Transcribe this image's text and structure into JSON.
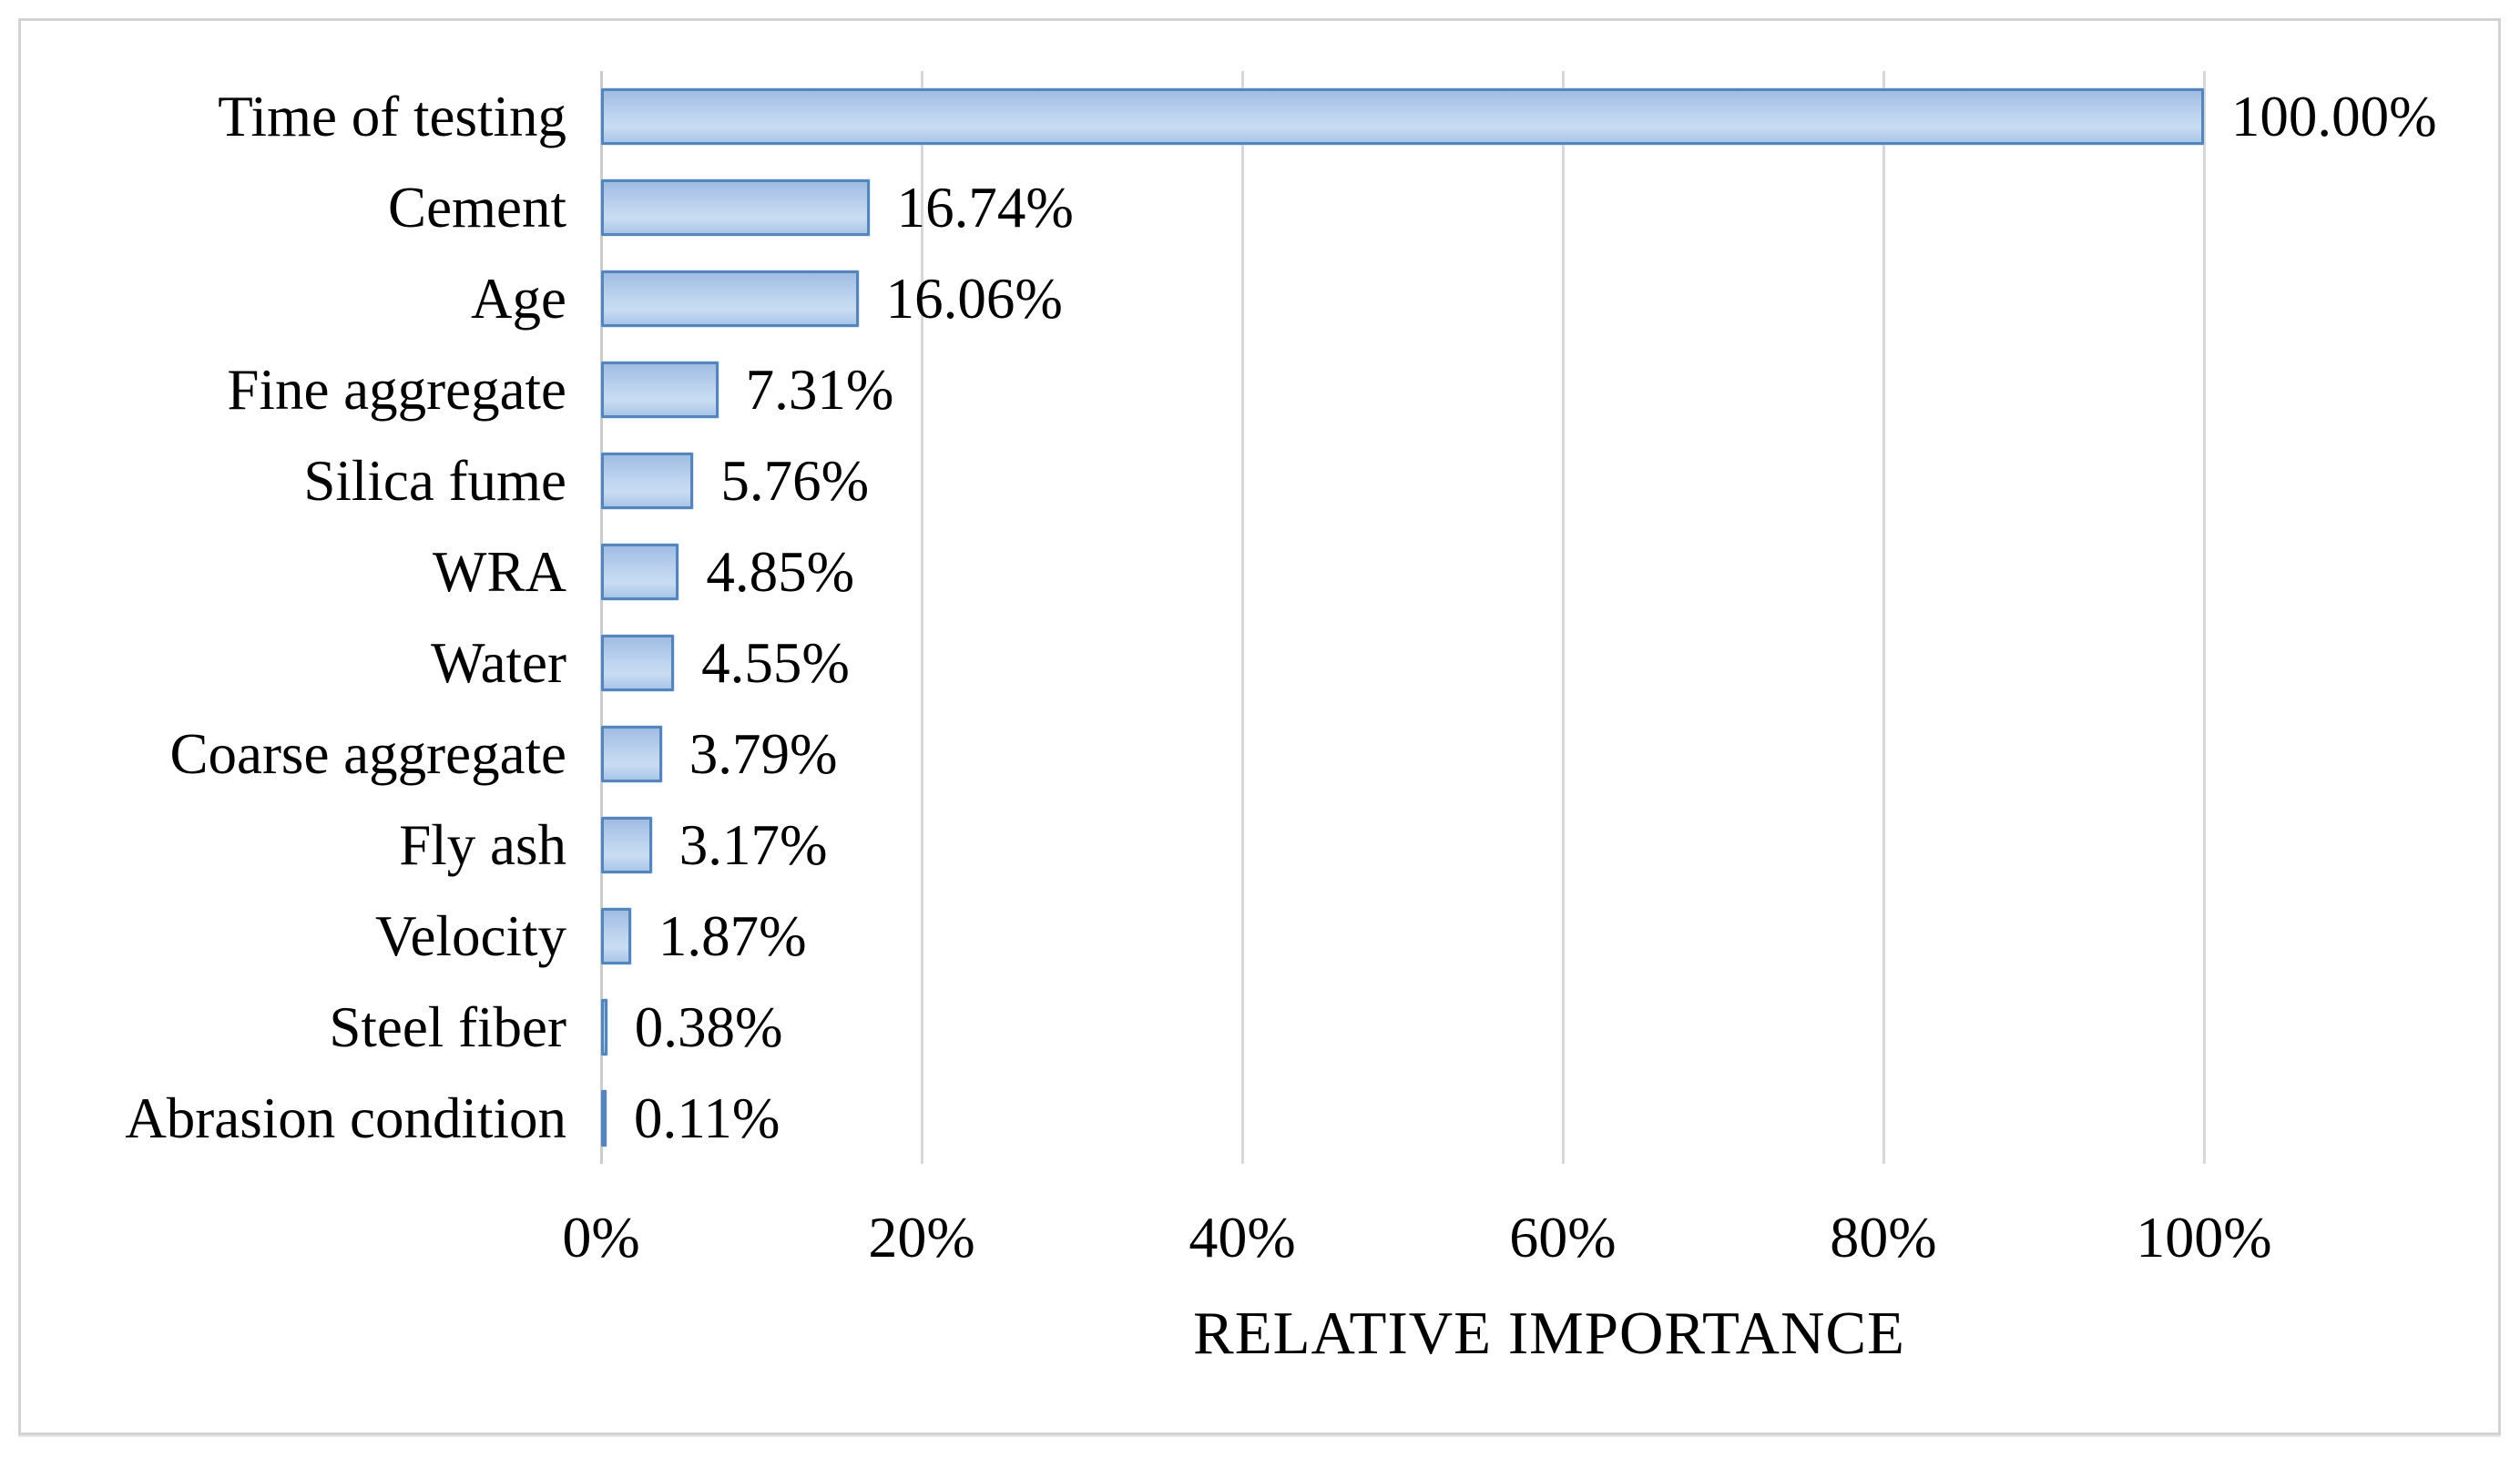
{
  "figure": {
    "background": "#ffffff",
    "frame_border_color": "#d3d3d3"
  },
  "chart_data": {
    "type": "bar",
    "orientation": "horizontal",
    "title": "",
    "xlabel": "RELATIVE IMPORTANCE",
    "ylabel": "",
    "categories": [
      "Time of testing",
      "Cement",
      "Age",
      "Fine aggregate",
      "Silica fume",
      "WRA",
      "Water",
      "Coarse aggregate",
      "Fly ash",
      "Velocity",
      "Steel fiber",
      "Abrasion condition"
    ],
    "values": [
      100.0,
      16.74,
      16.06,
      7.31,
      5.76,
      4.85,
      4.55,
      3.79,
      3.17,
      1.87,
      0.38,
      0.11
    ],
    "data_labels": [
      "100.00%",
      "16.74%",
      "16.06%",
      "7.31%",
      "5.76%",
      "4.85%",
      "4.55%",
      "3.79%",
      "3.17%",
      "1.87%",
      "0.38%",
      "0.11%"
    ],
    "x_tick_labels": [
      "0%",
      "20%",
      "40%",
      "60%",
      "80%",
      "100%"
    ],
    "x_tick_values": [
      0,
      20,
      40,
      60,
      80,
      100
    ],
    "xlim": [
      0,
      118.3
    ],
    "grid": "vertical-gridlines-on",
    "legend": "none",
    "colors": {
      "bar_border": "#5585ba",
      "bar_fill_top": "#9fbde2",
      "bar_fill_mid": "#c9dcf3",
      "bar_fill_bottom": "#a9c6e8",
      "gridline": "#d8d8d8",
      "text": "#000000"
    }
  }
}
